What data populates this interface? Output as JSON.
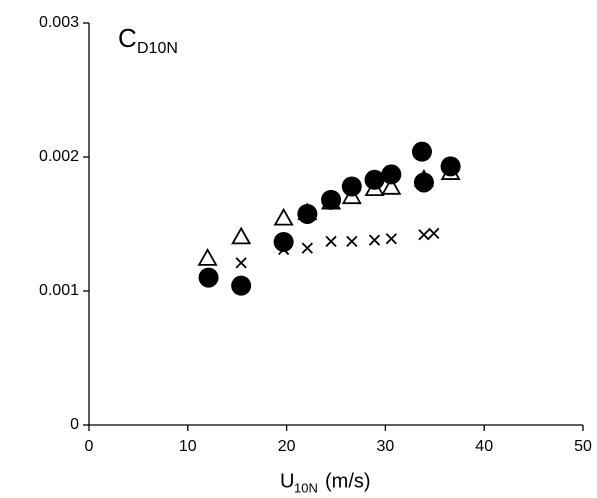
{
  "chart_data": {
    "type": "scatter",
    "annotation": {
      "main": "C",
      "sub": "D10N"
    },
    "x_label": {
      "main": "U",
      "sub": "10N",
      "unit": "(m/s)"
    },
    "xlim": [
      0,
      50
    ],
    "xticks": [
      0,
      10,
      20,
      30,
      40,
      50
    ],
    "ylim": [
      0,
      0.003
    ],
    "yticks": [
      0,
      0.001,
      0.002,
      0.003
    ],
    "series": [
      {
        "marker": "circle",
        "color": "#000000",
        "x": [
          12.1,
          15.4,
          19.7,
          22.1,
          24.5,
          26.6,
          28.9,
          30.6,
          33.7,
          33.9,
          36.6
        ],
        "values": [
          0.0011,
          0.00104,
          0.001366,
          0.001575,
          0.00168,
          0.00178,
          0.00183,
          0.00187,
          0.00204,
          0.00181,
          0.00193
        ]
      },
      {
        "marker": "triangle",
        "color": "#000000",
        "x": [
          12.0,
          15.4,
          19.7,
          22.1,
          24.5,
          26.6,
          28.9,
          30.6,
          33.9,
          36.6
        ],
        "values": [
          0.00124,
          0.0014,
          0.00154,
          0.00158,
          0.00166,
          0.0017,
          0.00176,
          0.00177,
          0.00183,
          0.00188
        ]
      },
      {
        "marker": "cross",
        "color": "#000000",
        "x": [
          15.4,
          19.7,
          22.1,
          24.5,
          26.6,
          28.9,
          30.6,
          33.9,
          34.9
        ],
        "values": [
          0.00121,
          0.00131,
          0.00132,
          0.00137,
          0.00137,
          0.00138,
          0.00139,
          0.00142,
          0.00143
        ]
      }
    ]
  }
}
